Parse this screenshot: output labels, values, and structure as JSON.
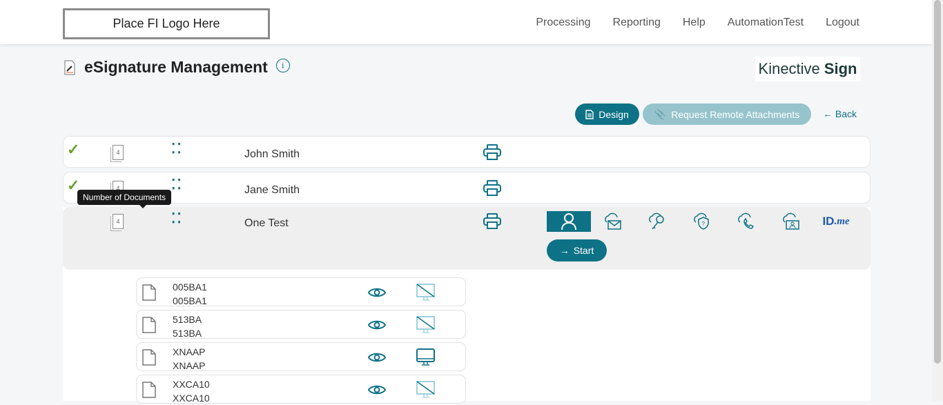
{
  "header": {
    "logo": "Place FI Logo Here",
    "nav": [
      "Processing",
      "Reporting",
      "Help",
      "AutomationTest",
      "Logout"
    ]
  },
  "page": {
    "title": "eSignature Management",
    "brand_light": "Kinective",
    "brand_bold": "Sign"
  },
  "toolbar": {
    "design": "Design",
    "request": "Request Remote Attachments",
    "back": "Back"
  },
  "signers": [
    {
      "name": "John Smith",
      "docs": "4",
      "done": true
    },
    {
      "name": "Jane Smith",
      "docs": "4",
      "done": true
    },
    {
      "name": "One Test",
      "docs": "4",
      "done": false
    }
  ],
  "tooltip": "Number of Documents",
  "auth_methods": [
    "person-icon",
    "cloud-email-icon",
    "cloud-key-icon",
    "cloud-security-question-icon",
    "cloud-phone-icon",
    "cloud-id-photo-icon",
    "idme-logo"
  ],
  "idme": {
    "id": "ID",
    "me": ".me"
  },
  "start": "Start",
  "documents": [
    {
      "code": "005BA1",
      "name": "005BA1",
      "in_person": false
    },
    {
      "code": "513BA",
      "name": "513BA",
      "in_person": false
    },
    {
      "code": "XNAAP",
      "name": "XNAAP",
      "in_person": true
    },
    {
      "code": "XXCA10",
      "name": "XXCA10",
      "in_person": false
    }
  ],
  "colors": {
    "accent": "#0e7286",
    "accent_light": "#97c4cc",
    "check": "#6aa12d"
  }
}
